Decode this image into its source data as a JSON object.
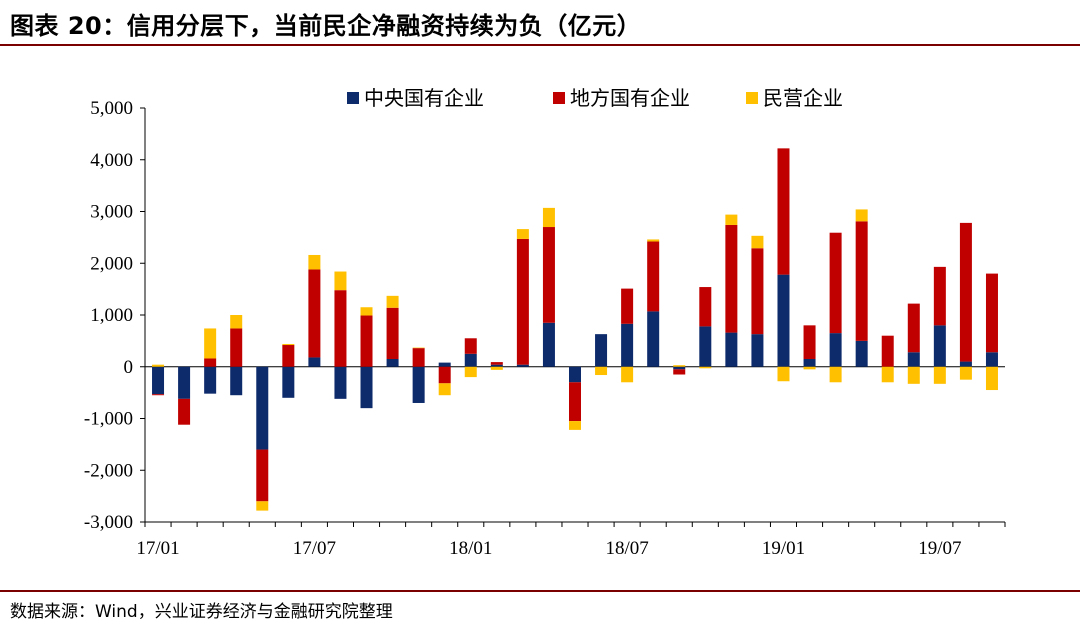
{
  "title": "图表 20：信用分层下，当前民企净融资持续为负（亿元）",
  "source": "数据来源：Wind，兴业证券经济与金融研究院整理",
  "colors": {
    "central": "#0d2a6b",
    "local": "#c00000",
    "private": "#ffc000",
    "rule": "#7a0000"
  },
  "chart_data": {
    "type": "bar",
    "stacked": true,
    "categories": [
      "17/01",
      "17/02",
      "17/03",
      "17/04",
      "17/05",
      "17/06",
      "17/07",
      "17/08",
      "17/09",
      "17/10",
      "17/11",
      "17/12",
      "18/01",
      "18/02",
      "18/03",
      "18/04",
      "18/05",
      "18/06",
      "18/07",
      "18/08",
      "18/09",
      "18/10",
      "18/11",
      "18/12",
      "19/01",
      "19/02",
      "19/03",
      "19/04",
      "19/05",
      "19/06",
      "19/07",
      "19/08",
      "19/09"
    ],
    "tick_labels": [
      "17/01",
      "17/07",
      "18/01",
      "18/07",
      "19/01",
      "19/07"
    ],
    "tick_indices": [
      0,
      6,
      12,
      18,
      24,
      30
    ],
    "y_ticks": [
      "5,000",
      "4,000",
      "3,000",
      "2,000",
      "1,000",
      "0",
      "-1,000",
      "-2,000",
      "-3,000"
    ],
    "ylim": [
      -3000,
      5000
    ],
    "legend_position": "top",
    "series": [
      {
        "name": "中央国有企业",
        "values": [
          -530,
          -620,
          -520,
          -550,
          -1600,
          -600,
          180,
          -620,
          -800,
          150,
          -700,
          80,
          250,
          40,
          40,
          850,
          -300,
          630,
          830,
          1070,
          -50,
          780,
          660,
          630,
          1780,
          150,
          650,
          500,
          0,
          280,
          800,
          100,
          280
        ]
      },
      {
        "name": "地方国有企业",
        "values": [
          -20,
          -500,
          160,
          740,
          -1000,
          420,
          1700,
          1480,
          990,
          990,
          360,
          -320,
          300,
          50,
          2430,
          1850,
          -750,
          0,
          680,
          1350,
          -100,
          760,
          2080,
          1660,
          2440,
          650,
          1940,
          2310,
          600,
          940,
          1130,
          2680,
          1520
        ]
      },
      {
        "name": "民营企业",
        "values": [
          40,
          0,
          580,
          260,
          -180,
          20,
          280,
          360,
          160,
          230,
          10,
          -230,
          -200,
          -60,
          190,
          370,
          -170,
          -160,
          -300,
          40,
          30,
          -30,
          200,
          240,
          -280,
          -50,
          -300,
          230,
          -300,
          -330,
          -330,
          -250,
          -450
        ]
      }
    ]
  }
}
